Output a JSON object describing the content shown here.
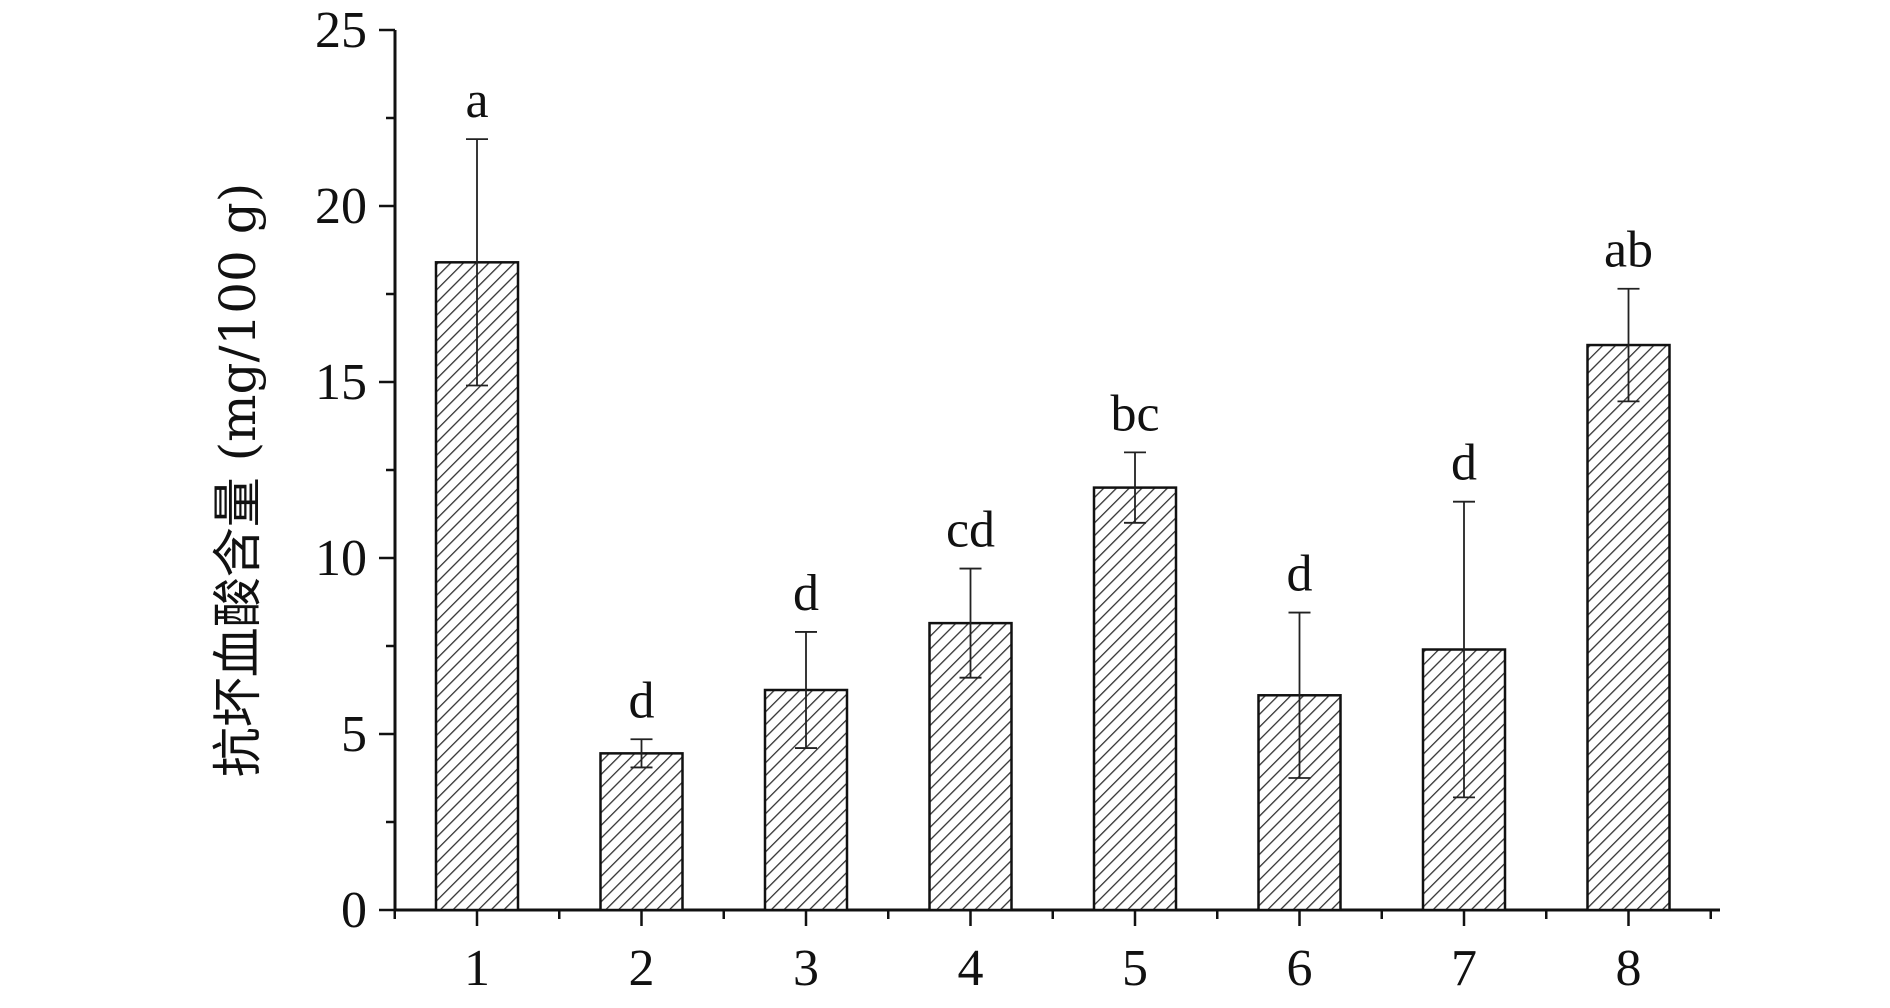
{
  "chart_data": {
    "type": "bar",
    "categories": [
      "1",
      "2",
      "3",
      "4",
      "5",
      "6",
      "7",
      "8"
    ],
    "values": [
      18.4,
      4.45,
      6.25,
      8.15,
      12.0,
      6.1,
      7.4,
      16.05
    ],
    "errors": [
      3.5,
      0.4,
      1.65,
      1.55,
      1.0,
      2.35,
      4.2,
      1.6
    ],
    "significance": [
      "a",
      "d",
      "d",
      "cd",
      "bc",
      "d",
      "d",
      "ab"
    ],
    "title": "",
    "xlabel": "",
    "ylabel": "抗坏血酸含量 (mg/100 g)",
    "ylim": [
      0,
      25
    ],
    "yticks": [
      0,
      5,
      10,
      15,
      20,
      25
    ],
    "grid": false,
    "bar_fill": "hatched",
    "colors": {
      "bar_stroke": "#111111",
      "hatch": "#333333",
      "axis": "#111111"
    }
  }
}
